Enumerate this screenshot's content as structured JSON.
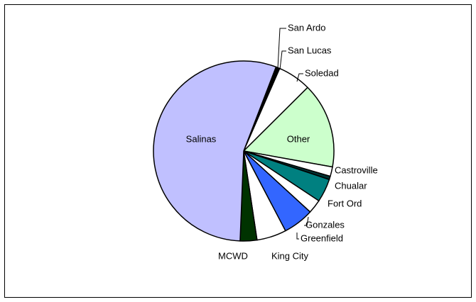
{
  "chart_data": {
    "type": "pie",
    "categories": [
      "San Ardo",
      "San Lucas",
      "Soledad",
      "Other",
      "Castroville",
      "Chualar",
      "Fort Ord",
      "Gonzales",
      "Greenfield",
      "King City",
      "MCWD",
      "Salinas"
    ],
    "values": [
      0.3,
      0.4,
      6.0,
      15.3,
      1.7,
      0.6,
      4.2,
      2.5,
      5.5,
      5.3,
      3.0,
      55.2
    ],
    "colors": [
      "#000000",
      "#000000",
      "#ffffff",
      "#ccffcc",
      "#ffffff",
      "#003333",
      "#008080",
      "#ffffff",
      "#3366ff",
      "#ffffff",
      "#003300",
      "#c0c0ff"
    ]
  }
}
